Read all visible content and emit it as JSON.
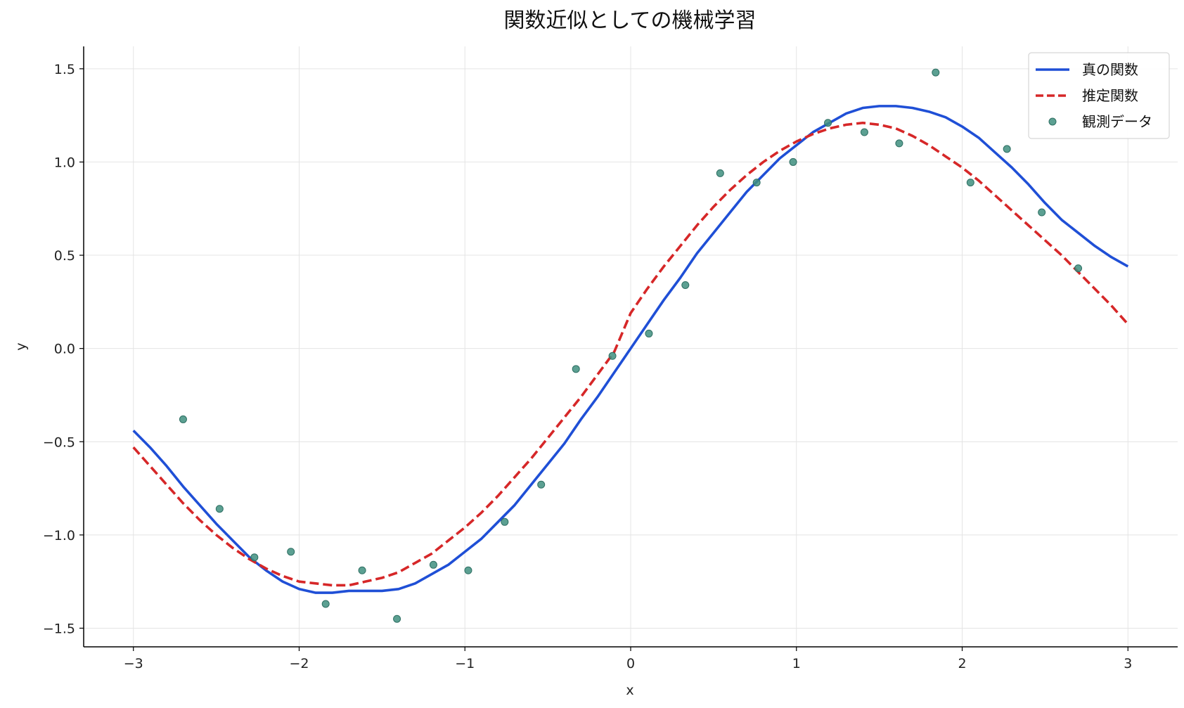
{
  "chart_data": {
    "type": "line",
    "title": "関数近似としての機械学習",
    "xlabel": "x",
    "ylabel": "y",
    "xlim": [
      -3.3,
      3.3
    ],
    "ylim": [
      -1.6,
      1.62
    ],
    "xticks": [
      -3,
      -2,
      -1,
      0,
      1,
      2,
      3
    ],
    "xtick_labels": [
      "−3",
      "−2",
      "−1",
      "0",
      "1",
      "2",
      "3"
    ],
    "yticks": [
      -1.5,
      -1.0,
      -0.5,
      0.0,
      0.5,
      1.0,
      1.5
    ],
    "ytick_labels": [
      "−1.5",
      "−1.0",
      "−0.5",
      "0.0",
      "0.5",
      "1.0",
      "1.5"
    ],
    "grid": true,
    "legend_position": "top-right",
    "series": [
      {
        "name": "真の関数",
        "kind": "line",
        "style": "solid",
        "color": "#1f4fd6",
        "x": [
          -3.0,
          -2.9,
          -2.8,
          -2.7,
          -2.6,
          -2.5,
          -2.4,
          -2.3,
          -2.2,
          -2.1,
          -2.0,
          -1.9,
          -1.8,
          -1.7,
          -1.6,
          -1.5,
          -1.4,
          -1.3,
          -1.2,
          -1.1,
          -1.0,
          -0.9,
          -0.8,
          -0.7,
          -0.6,
          -0.5,
          -0.4,
          -0.3,
          -0.2,
          -0.1,
          0.0,
          0.1,
          0.2,
          0.3,
          0.4,
          0.5,
          0.6,
          0.7,
          0.8,
          0.9,
          1.0,
          1.1,
          1.2,
          1.3,
          1.4,
          1.5,
          1.6,
          1.7,
          1.8,
          1.9,
          2.0,
          2.1,
          2.2,
          2.3,
          2.4,
          2.5,
          2.6,
          2.7,
          2.8,
          2.9,
          3.0
        ],
        "y": [
          -0.44,
          -0.53,
          -0.63,
          -0.74,
          -0.84,
          -0.94,
          -1.03,
          -1.12,
          -1.19,
          -1.25,
          -1.29,
          -1.31,
          -1.31,
          -1.3,
          -1.3,
          -1.3,
          -1.29,
          -1.26,
          -1.21,
          -1.16,
          -1.09,
          -1.02,
          -0.93,
          -0.84,
          -0.73,
          -0.62,
          -0.51,
          -0.38,
          -0.26,
          -0.13,
          0.0,
          0.13,
          0.26,
          0.38,
          0.51,
          0.62,
          0.73,
          0.84,
          0.93,
          1.02,
          1.09,
          1.16,
          1.21,
          1.26,
          1.29,
          1.3,
          1.3,
          1.29,
          1.27,
          1.24,
          1.19,
          1.13,
          1.05,
          0.97,
          0.88,
          0.78,
          0.69,
          0.62,
          0.55,
          0.49,
          0.44
        ]
      },
      {
        "name": "推定関数",
        "kind": "line",
        "style": "dashed",
        "color": "#d62728",
        "x": [
          -3.0,
          -2.9,
          -2.8,
          -2.7,
          -2.6,
          -2.5,
          -2.4,
          -2.3,
          -2.2,
          -2.1,
          -2.0,
          -1.9,
          -1.8,
          -1.7,
          -1.6,
          -1.5,
          -1.4,
          -1.3,
          -1.2,
          -1.1,
          -1.0,
          -0.9,
          -0.8,
          -0.7,
          -0.6,
          -0.5,
          -0.4,
          -0.3,
          -0.2,
          -0.1,
          0.0,
          0.1,
          0.2,
          0.3,
          0.4,
          0.5,
          0.6,
          0.7,
          0.8,
          0.9,
          1.0,
          1.1,
          1.2,
          1.3,
          1.4,
          1.5,
          1.6,
          1.7,
          1.8,
          1.9,
          2.0,
          2.1,
          2.2,
          2.3,
          2.4,
          2.5,
          2.6,
          2.7,
          2.8,
          2.9,
          3.0
        ],
        "y": [
          -0.53,
          -0.63,
          -0.73,
          -0.83,
          -0.92,
          -1.0,
          -1.07,
          -1.13,
          -1.18,
          -1.22,
          -1.25,
          -1.26,
          -1.27,
          -1.27,
          -1.25,
          -1.23,
          -1.2,
          -1.15,
          -1.1,
          -1.03,
          -0.96,
          -0.88,
          -0.79,
          -0.69,
          -0.59,
          -0.48,
          -0.37,
          -0.26,
          -0.14,
          -0.02,
          0.19,
          0.32,
          0.44,
          0.55,
          0.66,
          0.76,
          0.85,
          0.93,
          1.0,
          1.06,
          1.11,
          1.15,
          1.18,
          1.2,
          1.21,
          1.2,
          1.18,
          1.14,
          1.09,
          1.03,
          0.97,
          0.9,
          0.82,
          0.74,
          0.66,
          0.58,
          0.5,
          0.41,
          0.32,
          0.23,
          0.13
        ]
      },
      {
        "name": "観測データ",
        "kind": "scatter",
        "color": "#3f8f7f",
        "x": [
          -2.7,
          -2.48,
          -2.27,
          -2.05,
          -1.84,
          -1.62,
          -1.41,
          -1.19,
          -0.98,
          -0.76,
          -0.54,
          -0.33,
          -0.11,
          0.11,
          0.33,
          0.54,
          0.76,
          0.98,
          1.19,
          1.41,
          1.62,
          1.84,
          2.05,
          2.27,
          2.48,
          2.7
        ],
        "y": [
          -0.38,
          -0.86,
          -1.12,
          -1.09,
          -1.37,
          -1.19,
          -1.45,
          -1.16,
          -1.19,
          -0.93,
          -0.73,
          -0.11,
          -0.04,
          0.08,
          0.34,
          0.94,
          0.89,
          1.0,
          1.21,
          1.16,
          1.1,
          1.48,
          0.89,
          1.07,
          0.73,
          0.43
        ]
      }
    ]
  }
}
